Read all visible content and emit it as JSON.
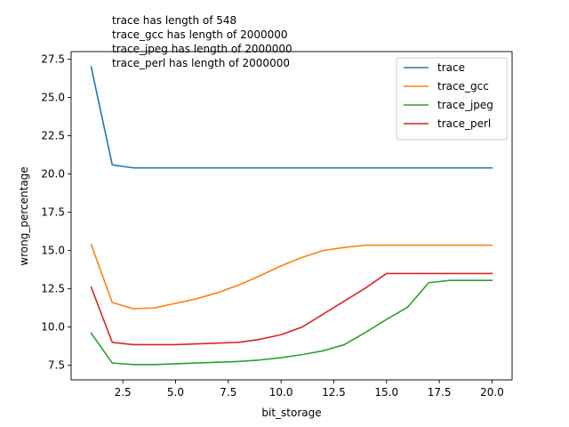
{
  "chart_data": {
    "type": "line",
    "xlabel": "bit_storage",
    "ylabel": "wrong_percentage",
    "xlim": [
      0.05,
      20.95
    ],
    "ylim": [
      6.55,
      28.0
    ],
    "xticks": [
      2.5,
      5.0,
      7.5,
      10.0,
      12.5,
      15.0,
      17.5,
      20.0
    ],
    "xtick_labels": [
      "2.5",
      "5.0",
      "7.5",
      "10.0",
      "12.5",
      "15.0",
      "17.5",
      "20.0"
    ],
    "yticks": [
      7.5,
      10.0,
      12.5,
      15.0,
      17.5,
      20.0,
      22.5,
      25.0,
      27.5
    ],
    "ytick_labels": [
      "7.5",
      "10.0",
      "12.5",
      "15.0",
      "17.5",
      "20.0",
      "22.5",
      "25.0",
      "27.5"
    ],
    "grid": false,
    "legend_position": "top-right",
    "annotations": [
      "trace has length of 548",
      "trace_gcc has length of 2000000",
      "trace_jpeg has length of 2000000",
      "trace_perl has length of 2000000"
    ],
    "x": [
      1,
      2,
      3,
      4,
      5,
      6,
      7,
      8,
      9,
      10,
      11,
      12,
      13,
      14,
      15,
      16,
      17,
      18,
      19,
      20
    ],
    "series": [
      {
        "name": "trace",
        "color": "#1f77b4",
        "values": [
          27.0,
          20.6,
          20.4,
          20.4,
          20.4,
          20.4,
          20.4,
          20.4,
          20.4,
          20.4,
          20.4,
          20.4,
          20.4,
          20.4,
          20.4,
          20.4,
          20.4,
          20.4,
          20.4,
          20.4
        ]
      },
      {
        "name": "trace_gcc",
        "color": "#ff7f0e",
        "values": [
          15.4,
          11.6,
          11.2,
          11.25,
          11.55,
          11.85,
          12.25,
          12.75,
          13.35,
          14.0,
          14.55,
          15.0,
          15.2,
          15.35,
          15.35,
          15.35,
          15.35,
          15.35,
          15.35,
          15.35
        ]
      },
      {
        "name": "trace_jpeg",
        "color": "#2ca02c",
        "values": [
          9.6,
          7.65,
          7.55,
          7.55,
          7.6,
          7.65,
          7.7,
          7.75,
          7.85,
          8.0,
          8.2,
          8.45,
          8.85,
          9.65,
          10.5,
          11.3,
          12.9,
          13.05,
          13.05,
          13.05
        ]
      },
      {
        "name": "trace_perl",
        "color": "#d62728",
        "values": [
          12.6,
          9.0,
          8.85,
          8.85,
          8.85,
          8.9,
          8.95,
          9.0,
          9.2,
          9.5,
          10.0,
          10.85,
          11.7,
          12.55,
          13.5,
          13.5,
          13.5,
          13.5,
          13.5,
          13.5
        ]
      }
    ]
  }
}
